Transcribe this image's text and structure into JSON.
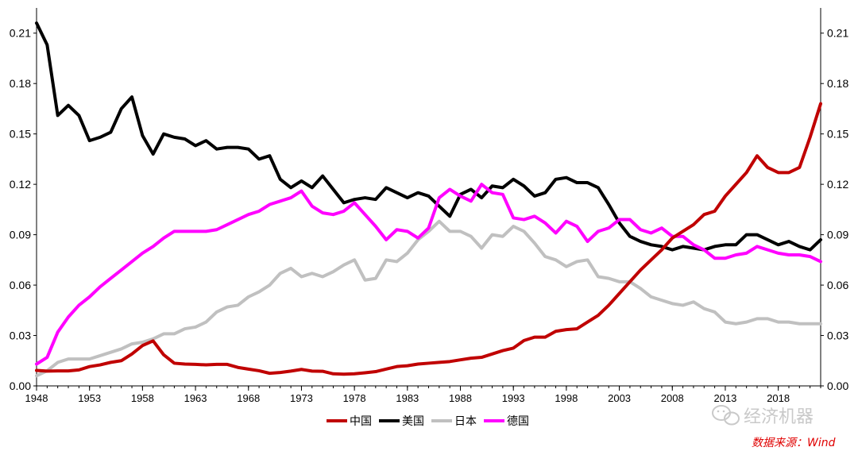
{
  "chart_data": {
    "type": "line",
    "x_ticks": [
      "1948",
      "1953",
      "1958",
      "1963",
      "1968",
      "1973",
      "1978",
      "1983",
      "1988",
      "1993",
      "1998",
      "2003",
      "2008",
      "2013",
      "2018"
    ],
    "xlim": [
      1948,
      2022
    ],
    "ylim": [
      0,
      0.225
    ],
    "y_ticks": [
      "0.00",
      "0.03",
      "0.06",
      "0.09",
      "0.12",
      "0.15",
      "0.18",
      "0.21"
    ],
    "y_tick_values": [
      0,
      0.03,
      0.06,
      0.09,
      0.12,
      0.15,
      0.18,
      0.21
    ],
    "grid": false,
    "legend_position": "bottom-center",
    "x": [
      1948,
      1949,
      1950,
      1951,
      1952,
      1953,
      1954,
      1955,
      1956,
      1957,
      1958,
      1959,
      1960,
      1961,
      1962,
      1963,
      1964,
      1965,
      1966,
      1967,
      1968,
      1969,
      1970,
      1971,
      1972,
      1973,
      1974,
      1975,
      1976,
      1977,
      1978,
      1979,
      1980,
      1981,
      1982,
      1983,
      1984,
      1985,
      1986,
      1987,
      1988,
      1989,
      1990,
      1991,
      1992,
      1993,
      1994,
      1995,
      1996,
      1997,
      1998,
      1999,
      2000,
      2001,
      2002,
      2003,
      2004,
      2005,
      2006,
      2007,
      2008,
      2009,
      2010,
      2011,
      2012,
      2013,
      2014,
      2015,
      2016,
      2017,
      2018,
      2019,
      2020,
      2021,
      2022
    ],
    "series": [
      {
        "name": "中国",
        "color": "#c00000",
        "values": [
          0.0092,
          0.0088,
          0.0089,
          0.0089,
          0.0095,
          0.0115,
          0.0125,
          0.014,
          0.015,
          0.019,
          0.024,
          0.0268,
          0.0185,
          0.0135,
          0.013,
          0.0128,
          0.0125,
          0.0128,
          0.0128,
          0.011,
          0.01,
          0.009,
          0.0075,
          0.008,
          0.0088,
          0.0098,
          0.0088,
          0.0087,
          0.0072,
          0.007,
          0.0072,
          0.0078,
          0.0085,
          0.01,
          0.0115,
          0.012,
          0.013,
          0.0135,
          0.014,
          0.0145,
          0.0155,
          0.0165,
          0.017,
          0.019,
          0.021,
          0.0225,
          0.027,
          0.029,
          0.029,
          0.0325,
          0.0335,
          0.034,
          0.038,
          0.042,
          0.048,
          0.055,
          0.062,
          0.069,
          0.075,
          0.081,
          0.088,
          0.092,
          0.096,
          0.102,
          0.104,
          0.113,
          0.12,
          0.127,
          0.137,
          0.13,
          0.127,
          0.127,
          0.13,
          0.148,
          0.168
        ]
      },
      {
        "name": "美国",
        "color": "#000000",
        "values": [
          0.216,
          0.203,
          0.161,
          0.167,
          0.161,
          0.146,
          0.148,
          0.151,
          0.165,
          0.172,
          0.149,
          0.138,
          0.15,
          0.148,
          0.147,
          0.143,
          0.146,
          0.141,
          0.142,
          0.142,
          0.141,
          0.135,
          0.137,
          0.123,
          0.118,
          0.122,
          0.118,
          0.125,
          0.117,
          0.109,
          0.111,
          0.112,
          0.111,
          0.118,
          0.115,
          0.112,
          0.115,
          0.113,
          0.107,
          0.101,
          0.114,
          0.117,
          0.112,
          0.119,
          0.118,
          0.123,
          0.119,
          0.113,
          0.115,
          0.123,
          0.124,
          0.121,
          0.121,
          0.118,
          0.108,
          0.097,
          0.089,
          0.086,
          0.084,
          0.083,
          0.081,
          0.083,
          0.082,
          0.081,
          0.083,
          0.084,
          0.084,
          0.09,
          0.09,
          0.087,
          0.084,
          0.086,
          0.083,
          0.081,
          0.087
        ]
      },
      {
        "name": "日本",
        "color": "#c0c0c0",
        "values": [
          0.006,
          0.009,
          0.014,
          0.016,
          0.016,
          0.016,
          0.018,
          0.02,
          0.022,
          0.025,
          0.026,
          0.028,
          0.031,
          0.031,
          0.034,
          0.035,
          0.038,
          0.044,
          0.047,
          0.048,
          0.053,
          0.056,
          0.06,
          0.067,
          0.07,
          0.065,
          0.067,
          0.065,
          0.068,
          0.072,
          0.075,
          0.063,
          0.064,
          0.075,
          0.074,
          0.079,
          0.087,
          0.092,
          0.098,
          0.092,
          0.092,
          0.089,
          0.082,
          0.09,
          0.089,
          0.095,
          0.092,
          0.085,
          0.077,
          0.075,
          0.071,
          0.074,
          0.075,
          0.065,
          0.064,
          0.062,
          0.062,
          0.058,
          0.053,
          0.051,
          0.049,
          0.048,
          0.05,
          0.046,
          0.044,
          0.038,
          0.037,
          0.038,
          0.04,
          0.04,
          0.038,
          0.038,
          0.037,
          0.037,
          0.037
        ]
      },
      {
        "name": "德国",
        "color": "#ff00ff",
        "values": [
          0.013,
          0.017,
          0.032,
          0.041,
          0.048,
          0.053,
          0.059,
          0.064,
          0.069,
          0.074,
          0.079,
          0.083,
          0.088,
          0.092,
          0.092,
          0.092,
          0.092,
          0.093,
          0.096,
          0.099,
          0.102,
          0.104,
          0.108,
          0.11,
          0.112,
          0.116,
          0.107,
          0.103,
          0.102,
          0.104,
          0.109,
          0.102,
          0.095,
          0.087,
          0.093,
          0.092,
          0.088,
          0.094,
          0.112,
          0.117,
          0.113,
          0.11,
          0.12,
          0.115,
          0.114,
          0.1,
          0.099,
          0.101,
          0.097,
          0.091,
          0.098,
          0.095,
          0.086,
          0.092,
          0.094,
          0.099,
          0.099,
          0.093,
          0.091,
          0.094,
          0.089,
          0.089,
          0.084,
          0.081,
          0.076,
          0.076,
          0.078,
          0.079,
          0.083,
          0.081,
          0.079,
          0.078,
          0.078,
          0.077,
          0.074
        ]
      }
    ]
  },
  "watermark": {
    "text": "经济机器",
    "icon": "wechat-icon",
    "color": "#c9c9c9"
  },
  "source": {
    "text": "数据来源：Wind",
    "color": "#e00000"
  }
}
